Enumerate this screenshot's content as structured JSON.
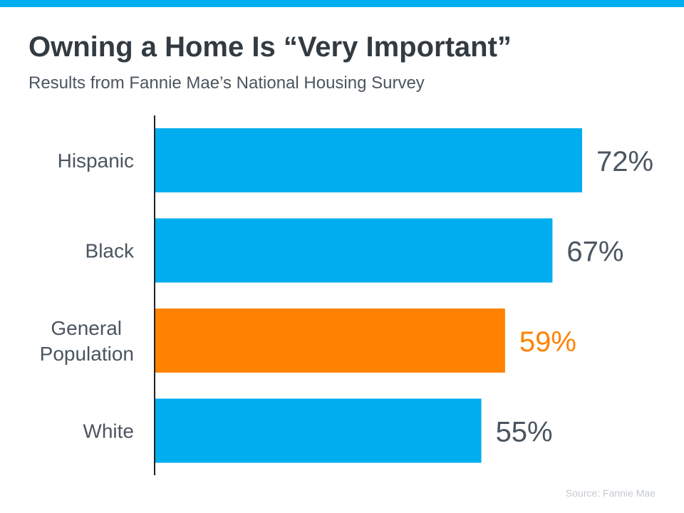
{
  "header": {
    "title": "Owning a Home Is “Very Important”",
    "subtitle": "Results from Fannie Mae’s National Housing Survey"
  },
  "footer": {
    "source": "Source: Fannie Mae"
  },
  "colors": {
    "accent": "#00aeef",
    "highlight": "#ff8200",
    "label_text": "#4a5560",
    "value_text": "#4a5560",
    "axis": "#222222"
  },
  "chart_data": {
    "type": "bar",
    "orientation": "horizontal",
    "categories": [
      "Hispanic",
      "Black",
      "General Population",
      "White"
    ],
    "category_lines": [
      [
        "Hispanic"
      ],
      [
        "Black"
      ],
      [
        "General",
        "Population"
      ],
      [
        "White"
      ]
    ],
    "values": [
      72,
      67,
      59,
      55
    ],
    "value_labels": [
      "72%",
      "67%",
      "59%",
      "55%"
    ],
    "highlighted": [
      false,
      false,
      true,
      false
    ],
    "xlim": [
      0,
      72
    ],
    "grid": false,
    "legend": "none"
  }
}
